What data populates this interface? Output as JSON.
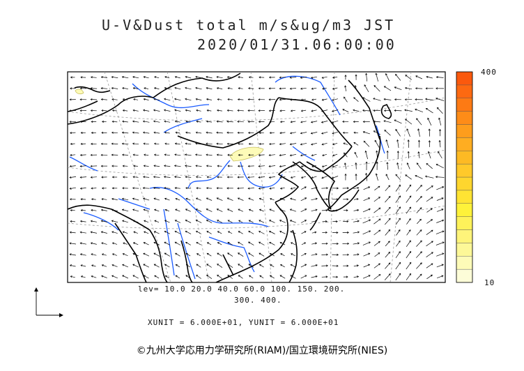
{
  "header": {
    "title": "U-V&Dust total m/s&ug/m3 JST",
    "datetime": "2020/01/31.06:00:00"
  },
  "colorbar": {
    "max_label": "400",
    "min_label": "10",
    "colors": [
      "#fdfdd8",
      "#fdfbb8",
      "#fdf898",
      "#fef47a",
      "#fef25a",
      "#fef23a",
      "#ffe433",
      "#fed62e",
      "#ffc92a",
      "#fdba24",
      "#ffad21",
      "#fe9d1c",
      "#fe8c18",
      "#fd7a14",
      "#fd6911",
      "#fb590d"
    ]
  },
  "legend": {
    "levels_line1": "lev= 10.0 20.0 40.0 60.0 100. 150. 200.",
    "levels_line2": "300. 400.",
    "units": "XUNIT = 6.000E+01, YUNIT = 6.000E+01"
  },
  "footer": {
    "copyright": "©九州大学応用力学研究所(RIAM)/国立環境研究所(NIES)"
  },
  "colors": {
    "coastline": "#000000",
    "river": "#1a5bff",
    "dust": "#fdfbb8",
    "graticule": "#999999"
  }
}
